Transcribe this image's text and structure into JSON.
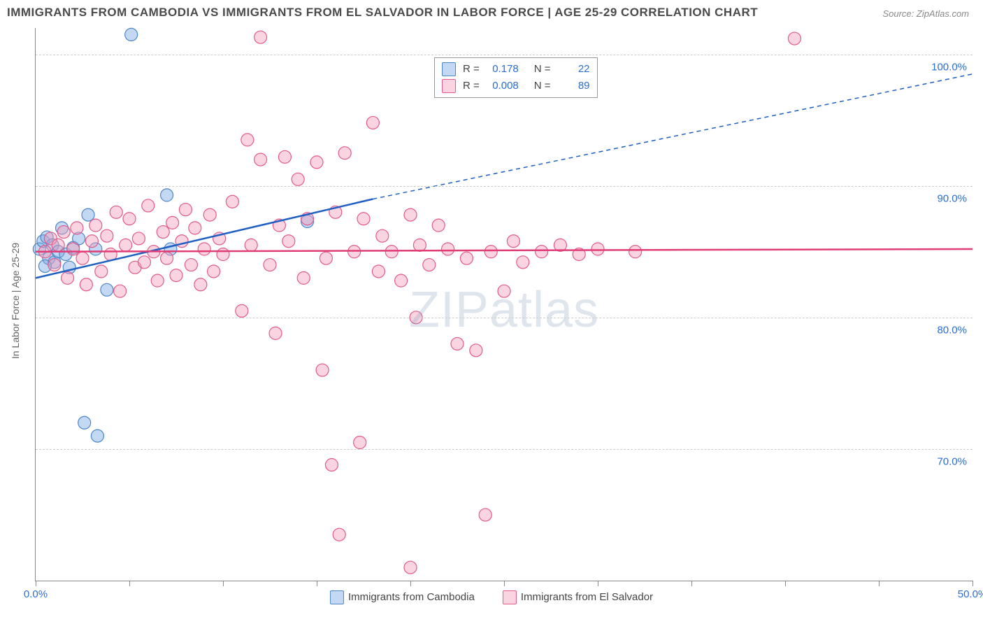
{
  "title": "IMMIGRANTS FROM CAMBODIA VS IMMIGRANTS FROM EL SALVADOR IN LABOR FORCE | AGE 25-29 CORRELATION CHART",
  "source": "Source: ZipAtlas.com",
  "watermark_a": "ZIP",
  "watermark_b": "atlas",
  "y_axis_title": "In Labor Force | Age 25-29",
  "chart": {
    "type": "scatter-correlation",
    "background_color": "#ffffff",
    "grid_color": "#cccccc",
    "axis_color": "#888888",
    "tick_label_color": "#2a6dd4",
    "xlim": [
      0,
      50
    ],
    "ylim": [
      60,
      102
    ],
    "x_ticks": [
      0,
      5,
      10,
      15,
      20,
      25,
      30,
      35,
      40,
      45,
      50
    ],
    "x_tick_labels": {
      "0": "0.0%",
      "50": "50.0%"
    },
    "y_ticks": [
      70,
      80,
      90,
      100
    ],
    "y_tick_labels": {
      "70": "70.0%",
      "80": "80.0%",
      "90": "90.0%",
      "100": "100.0%"
    },
    "marker_radius": 9,
    "marker_stroke_width": 1.2,
    "line_width": 2.5,
    "series": [
      {
        "id": "cambodia",
        "label": "Immigrants from Cambodia",
        "fill_color": "rgba(122,168,228,0.45)",
        "stroke_color": "#4d86c6",
        "trend_color": "#1f5fc4",
        "R": "0.178",
        "N": "22",
        "trend": {
          "x1": 0,
          "y1": 83,
          "x2": 18,
          "y2": 89,
          "ext_x2": 50,
          "ext_y2": 98.5
        },
        "points": [
          [
            0.2,
            85.2
          ],
          [
            0.4,
            85.8
          ],
          [
            0.6,
            86.1
          ],
          [
            0.7,
            84.5
          ],
          [
            0.9,
            85.5
          ],
          [
            1.0,
            84.2
          ],
          [
            1.2,
            85.0
          ],
          [
            1.4,
            86.8
          ],
          [
            1.6,
            84.8
          ],
          [
            1.8,
            83.8
          ],
          [
            2.0,
            85.3
          ],
          [
            2.3,
            86.0
          ],
          [
            2.8,
            87.8
          ],
          [
            3.2,
            85.2
          ],
          [
            3.8,
            82.1
          ],
          [
            5.1,
            101.5
          ],
          [
            7.0,
            89.3
          ],
          [
            2.6,
            72.0
          ],
          [
            3.3,
            71.0
          ],
          [
            14.5,
            87.3
          ],
          [
            7.2,
            85.2
          ],
          [
            0.5,
            83.9
          ]
        ]
      },
      {
        "id": "elsalvador",
        "label": "Immigrants from El Salvador",
        "fill_color": "rgba(244,160,188,0.45)",
        "stroke_color": "#e25a8a",
        "trend_color": "#e03d77",
        "R": "0.008",
        "N": "89",
        "trend": {
          "x1": 0,
          "y1": 85,
          "x2": 50,
          "y2": 85.2
        },
        "points": [
          [
            0.5,
            85.0
          ],
          [
            0.8,
            86.0
          ],
          [
            1.0,
            84.0
          ],
          [
            1.2,
            85.5
          ],
          [
            1.5,
            86.5
          ],
          [
            1.7,
            83.0
          ],
          [
            2.0,
            85.2
          ],
          [
            2.2,
            86.8
          ],
          [
            2.5,
            84.5
          ],
          [
            2.7,
            82.5
          ],
          [
            3.0,
            85.8
          ],
          [
            3.2,
            87.0
          ],
          [
            3.5,
            83.5
          ],
          [
            3.8,
            86.2
          ],
          [
            4.0,
            84.8
          ],
          [
            4.3,
            88.0
          ],
          [
            4.5,
            82.0
          ],
          [
            4.8,
            85.5
          ],
          [
            5.0,
            87.5
          ],
          [
            5.3,
            83.8
          ],
          [
            5.5,
            86.0
          ],
          [
            5.8,
            84.2
          ],
          [
            6.0,
            88.5
          ],
          [
            6.3,
            85.0
          ],
          [
            6.5,
            82.8
          ],
          [
            6.8,
            86.5
          ],
          [
            7.0,
            84.5
          ],
          [
            7.3,
            87.2
          ],
          [
            7.5,
            83.2
          ],
          [
            7.8,
            85.8
          ],
          [
            8.0,
            88.2
          ],
          [
            8.3,
            84.0
          ],
          [
            8.5,
            86.8
          ],
          [
            8.8,
            82.5
          ],
          [
            9.0,
            85.2
          ],
          [
            9.3,
            87.8
          ],
          [
            9.5,
            83.5
          ],
          [
            9.8,
            86.0
          ],
          [
            10.0,
            84.8
          ],
          [
            10.5,
            88.8
          ],
          [
            11.0,
            80.5
          ],
          [
            11.3,
            93.5
          ],
          [
            11.5,
            85.5
          ],
          [
            12.0,
            101.3
          ],
          [
            12.0,
            92.0
          ],
          [
            12.5,
            84.0
          ],
          [
            12.8,
            78.8
          ],
          [
            13.0,
            87.0
          ],
          [
            13.3,
            92.2
          ],
          [
            13.5,
            85.8
          ],
          [
            14.0,
            90.5
          ],
          [
            14.3,
            83.0
          ],
          [
            14.5,
            87.5
          ],
          [
            15.0,
            91.8
          ],
          [
            15.3,
            76.0
          ],
          [
            15.5,
            84.5
          ],
          [
            15.8,
            68.8
          ],
          [
            16.0,
            88.0
          ],
          [
            16.5,
            92.5
          ],
          [
            17.0,
            85.0
          ],
          [
            17.3,
            70.5
          ],
          [
            17.5,
            87.5
          ],
          [
            18.0,
            94.8
          ],
          [
            18.3,
            83.5
          ],
          [
            18.5,
            86.2
          ],
          [
            19.0,
            85.0
          ],
          [
            19.5,
            82.8
          ],
          [
            20.0,
            87.8
          ],
          [
            20.3,
            80.0
          ],
          [
            20.5,
            85.5
          ],
          [
            21.0,
            84.0
          ],
          [
            21.5,
            87.0
          ],
          [
            22.0,
            85.2
          ],
          [
            22.5,
            78.0
          ],
          [
            20.0,
            61.0
          ],
          [
            23.0,
            84.5
          ],
          [
            23.5,
            77.5
          ],
          [
            24.0,
            65.0
          ],
          [
            24.3,
            85.0
          ],
          [
            25.0,
            82.0
          ],
          [
            25.5,
            85.8
          ],
          [
            26.0,
            84.2
          ],
          [
            27.0,
            85.0
          ],
          [
            28.0,
            85.5
          ],
          [
            29.0,
            84.8
          ],
          [
            30.0,
            85.2
          ],
          [
            32.0,
            85.0
          ],
          [
            40.5,
            101.2
          ],
          [
            16.2,
            63.5
          ]
        ]
      }
    ]
  },
  "legend_box": {
    "rows": [
      {
        "swatch": "cambodia",
        "r_label": "R =",
        "r_val": "0.178",
        "n_label": "N =",
        "n_val": "22"
      },
      {
        "swatch": "elsalvador",
        "r_label": "R =",
        "r_val": "0.008",
        "n_label": "N =",
        "n_val": "89"
      }
    ]
  }
}
